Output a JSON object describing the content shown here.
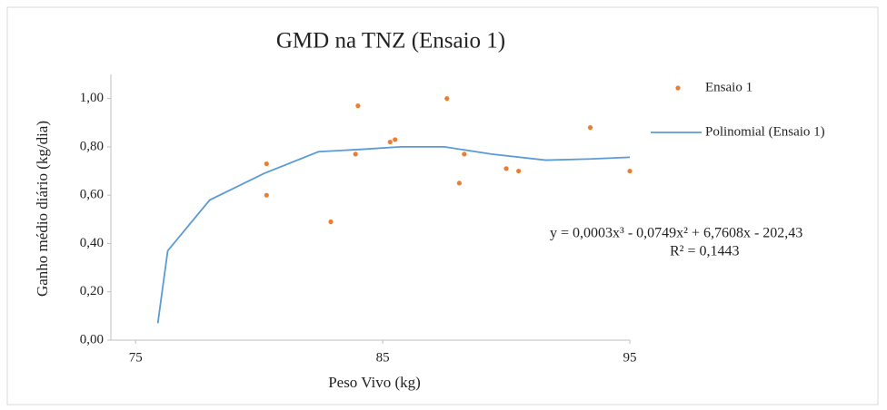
{
  "chart_data": {
    "type": "scatter",
    "title": "GMD na TNZ (Ensaio 1)",
    "xlabel": "Peso Vivo (kg)",
    "ylabel": "Ganho médio diário (kg/dia)",
    "series": [
      {
        "name": "Ensaio 1",
        "color": "#ed7d31",
        "x": [
          80.3,
          80.3,
          82.9,
          84.0,
          83.9,
          85.3,
          85.5,
          87.6,
          88.1,
          88.3,
          90.0,
          90.5,
          93.4,
          95.0
        ],
        "values": [
          0.73,
          0.6,
          0.49,
          0.97,
          0.77,
          0.82,
          0.83,
          1.0,
          0.65,
          0.77,
          0.71,
          0.7,
          0.88,
          0.7
        ]
      },
      {
        "name": "Polinomial (Ensaio 1)",
        "color": "#5b9bd5",
        "kind": "line",
        "x": [
          75.9,
          76.3,
          78.0,
          80.2,
          82.4,
          84.2,
          85.7,
          87.5,
          89.4,
          91.6,
          93.4,
          95.0
        ],
        "values": [
          0.07,
          0.37,
          0.58,
          0.69,
          0.78,
          0.79,
          0.8,
          0.8,
          0.77,
          0.745,
          0.75,
          0.757
        ]
      }
    ],
    "equation": "y = 0,0003x³ - 0,0749x² + 6,7608x - 202,43",
    "r_squared": "R² = 0,1443",
    "xlim": [
      74,
      95
    ],
    "xticks": [
      75,
      85,
      95
    ],
    "ylim": [
      0,
      1.1
    ],
    "yticks": [
      {
        "value": 0,
        "label": "0,00"
      },
      {
        "value": 0.2,
        "label": "0,20"
      },
      {
        "value": 0.4,
        "label": "0,40"
      },
      {
        "value": 0.6,
        "label": "0,60"
      },
      {
        "value": 0.8,
        "label": "0,80"
      },
      {
        "value": 1.0,
        "label": "1,00"
      }
    ],
    "legend": "right"
  }
}
